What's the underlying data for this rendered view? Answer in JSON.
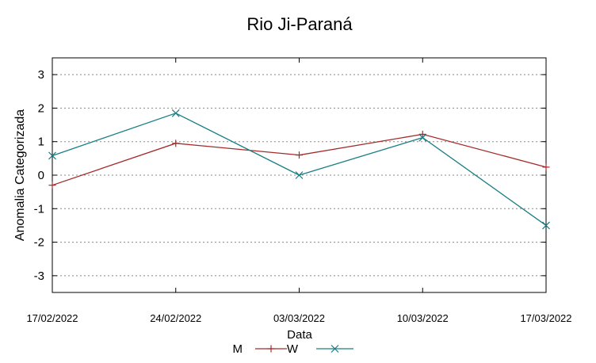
{
  "chart_data": {
    "type": "line",
    "title": "Rio Ji-Paraná",
    "xlabel": "Data",
    "ylabel": "Anomalia Categorizada",
    "categories": [
      "17/02/2022",
      "24/02/2022",
      "03/03/2022",
      "10/03/2022",
      "17/03/2022"
    ],
    "ylim": [
      -3.5,
      3.5
    ],
    "yticks": [
      "3",
      "2",
      "1",
      "0",
      "-1",
      "-2",
      "-3"
    ],
    "grid": "horizontal dotted",
    "legend_position": "bottom-center",
    "series": [
      {
        "name": "M",
        "color": "#a52a2a",
        "marker": "plus",
        "values": [
          -0.3,
          0.95,
          0.6,
          1.22,
          0.24
        ]
      },
      {
        "name": "W",
        "color": "#1a7f84",
        "marker": "cross",
        "values": [
          0.58,
          1.85,
          0.0,
          1.12,
          -1.5
        ]
      }
    ]
  }
}
